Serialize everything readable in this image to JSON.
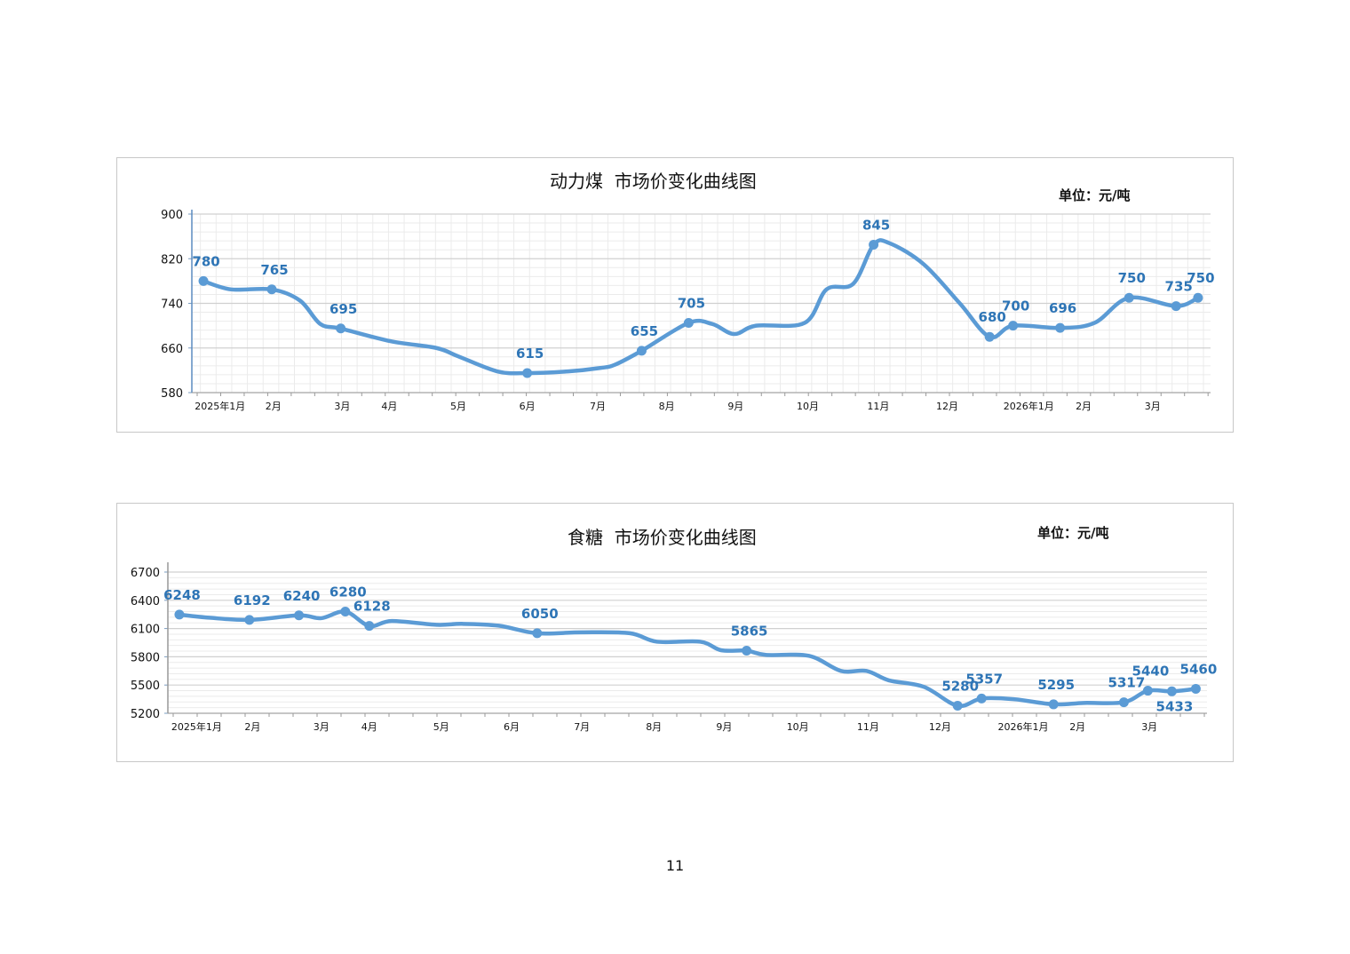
{
  "page_number": "11",
  "chart_data": [
    {
      "type": "line",
      "title": "动力煤  市场价变化曲线图",
      "unit": "单位：元/吨",
      "ylim": [
        580,
        900
      ],
      "yticks": [
        580,
        660,
        740,
        820,
        900
      ],
      "xlim": [
        0,
        65
      ],
      "xunit": "weeks since 2025-01-01",
      "grid": true,
      "xticks": [
        {
          "x": 1.8,
          "label": "2025年1月"
        },
        {
          "x": 5.2,
          "label": "2月"
        },
        {
          "x": 9.6,
          "label": "3月"
        },
        {
          "x": 12.6,
          "label": "4月"
        },
        {
          "x": 17.0,
          "label": "5月"
        },
        {
          "x": 21.4,
          "label": "6月"
        },
        {
          "x": 25.9,
          "label": "7月"
        },
        {
          "x": 30.3,
          "label": "8月"
        },
        {
          "x": 34.7,
          "label": "9月"
        },
        {
          "x": 39.3,
          "label": "10月"
        },
        {
          "x": 43.8,
          "label": "11月"
        },
        {
          "x": 48.2,
          "label": "12月"
        },
        {
          "x": 53.4,
          "label": "2026年1月"
        },
        {
          "x": 56.9,
          "label": "2月"
        },
        {
          "x": 61.3,
          "label": "3月"
        }
      ],
      "series": [
        {
          "name": "动力煤",
          "color": "#5B9BD5",
          "label_color": "#2E75B6",
          "points": [
            [
              0.74,
              780
            ],
            [
              2.5,
              765
            ],
            [
              5.1,
              765
            ],
            [
              6.9,
              745
            ],
            [
              8.2,
              703
            ],
            [
              9.5,
              695
            ],
            [
              12.7,
              672
            ],
            [
              15.6,
              660
            ],
            [
              17.0,
              645
            ],
            [
              19.5,
              618
            ],
            [
              21.4,
              615
            ],
            [
              24.0,
              618
            ],
            [
              26.0,
              624
            ],
            [
              27.0,
              630
            ],
            [
              28.7,
              655
            ],
            [
              31.7,
              705
            ],
            [
              33.2,
              703
            ],
            [
              34.6,
              685
            ],
            [
              36.0,
              700
            ],
            [
              39.1,
              705
            ],
            [
              40.5,
              765
            ],
            [
              42.2,
              775
            ],
            [
              43.5,
              845
            ],
            [
              44.5,
              848
            ],
            [
              46.7,
              810
            ],
            [
              49.0,
              740
            ],
            [
              50.9,
              680
            ],
            [
              52.4,
              700
            ],
            [
              55.4,
              696
            ],
            [
              57.6,
              705
            ],
            [
              59.8,
              750
            ],
            [
              62.8,
              735
            ],
            [
              64.2,
              750
            ]
          ],
          "markers": [
            {
              "x": 0.74,
              "y": 780,
              "label": "780",
              "pos": "above"
            },
            {
              "x": 5.1,
              "y": 765,
              "label": "765",
              "pos": "above"
            },
            {
              "x": 9.5,
              "y": 695,
              "label": "695",
              "pos": "above"
            },
            {
              "x": 21.4,
              "y": 615,
              "label": "615",
              "pos": "above"
            },
            {
              "x": 28.7,
              "y": 655,
              "label": "655",
              "pos": "above"
            },
            {
              "x": 31.7,
              "y": 705,
              "label": "705",
              "pos": "above"
            },
            {
              "x": 43.5,
              "y": 845,
              "label": "845",
              "pos": "above"
            },
            {
              "x": 50.9,
              "y": 680,
              "label": "680",
              "pos": "above"
            },
            {
              "x": 52.4,
              "y": 700,
              "label": "700",
              "pos": "above"
            },
            {
              "x": 55.4,
              "y": 696,
              "label": "696",
              "pos": "above"
            },
            {
              "x": 59.8,
              "y": 750,
              "label": "750",
              "pos": "above"
            },
            {
              "x": 62.8,
              "y": 735,
              "label": "735",
              "pos": "above"
            },
            {
              "x": 64.2,
              "y": 750,
              "label": "750",
              "pos": "above"
            }
          ]
        }
      ]
    },
    {
      "type": "line",
      "title": "食糖  市场价变化曲线图",
      "unit": "单位：元/吨",
      "ylim": [
        5200,
        6700
      ],
      "yticks": [
        5200,
        5500,
        5800,
        6100,
        6400,
        6700
      ],
      "xlim": [
        0,
        65
      ],
      "xunit": "weeks since 2025-01-01",
      "grid": true,
      "xticks": [
        {
          "x": 1.8,
          "label": "2025年1月"
        },
        {
          "x": 5.3,
          "label": "2月"
        },
        {
          "x": 9.6,
          "label": "3月"
        },
        {
          "x": 12.6,
          "label": "4月"
        },
        {
          "x": 17.1,
          "label": "5月"
        },
        {
          "x": 21.5,
          "label": "6月"
        },
        {
          "x": 25.9,
          "label": "7月"
        },
        {
          "x": 30.4,
          "label": "8月"
        },
        {
          "x": 34.8,
          "label": "9月"
        },
        {
          "x": 39.4,
          "label": "10月"
        },
        {
          "x": 43.8,
          "label": "11月"
        },
        {
          "x": 48.3,
          "label": "12月"
        },
        {
          "x": 53.5,
          "label": "2026年1月"
        },
        {
          "x": 56.9,
          "label": "2月"
        },
        {
          "x": 61.4,
          "label": "3月"
        }
      ],
      "series": [
        {
          "name": "食糖",
          "color": "#5B9BD5",
          "label_color": "#2E75B6",
          "points": [
            [
              0.72,
              6248
            ],
            [
              2.6,
              6215
            ],
            [
              5.1,
              6192
            ],
            [
              8.2,
              6240
            ],
            [
              9.6,
              6210
            ],
            [
              11.1,
              6280
            ],
            [
              12.6,
              6128
            ],
            [
              14.0,
              6180
            ],
            [
              16.8,
              6140
            ],
            [
              18.4,
              6150
            ],
            [
              20.7,
              6130
            ],
            [
              23.1,
              6050
            ],
            [
              25.9,
              6060
            ],
            [
              28.9,
              6050
            ],
            [
              30.6,
              5960
            ],
            [
              33.3,
              5960
            ],
            [
              34.6,
              5870
            ],
            [
              36.2,
              5865
            ],
            [
              37.4,
              5820
            ],
            [
              40.1,
              5810
            ],
            [
              42.1,
              5650
            ],
            [
              43.7,
              5650
            ],
            [
              45.1,
              5550
            ],
            [
              47.3,
              5480
            ],
            [
              49.4,
              5280
            ],
            [
              50.9,
              5357
            ],
            [
              52.9,
              5350
            ],
            [
              55.4,
              5295
            ],
            [
              57.3,
              5310
            ],
            [
              59.8,
              5317
            ],
            [
              61.3,
              5440
            ],
            [
              62.8,
              5433
            ],
            [
              64.3,
              5460
            ]
          ],
          "markers": [
            {
              "x": 0.72,
              "y": 6248,
              "label": "6248",
              "pos": "above"
            },
            {
              "x": 5.1,
              "y": 6192,
              "label": "6192",
              "pos": "above"
            },
            {
              "x": 8.2,
              "y": 6240,
              "label": "6240",
              "pos": "above"
            },
            {
              "x": 11.1,
              "y": 6280,
              "label": "6280",
              "pos": "above"
            },
            {
              "x": 12.6,
              "y": 6128,
              "label": "6128",
              "pos": "above"
            },
            {
              "x": 23.1,
              "y": 6050,
              "label": "6050",
              "pos": "above"
            },
            {
              "x": 36.2,
              "y": 5865,
              "label": "5865",
              "pos": "above"
            },
            {
              "x": 49.4,
              "y": 5280,
              "label": "5280",
              "pos": "above"
            },
            {
              "x": 50.9,
              "y": 5357,
              "label": "5357",
              "pos": "above"
            },
            {
              "x": 55.4,
              "y": 5295,
              "label": "5295",
              "pos": "above"
            },
            {
              "x": 59.8,
              "y": 5317,
              "label": "5317",
              "pos": "above"
            },
            {
              "x": 61.3,
              "y": 5440,
              "label": "5440",
              "pos": "above"
            },
            {
              "x": 62.8,
              "y": 5433,
              "label": "5433",
              "pos": "below"
            },
            {
              "x": 64.3,
              "y": 5460,
              "label": "5460",
              "pos": "above"
            }
          ]
        }
      ]
    }
  ]
}
